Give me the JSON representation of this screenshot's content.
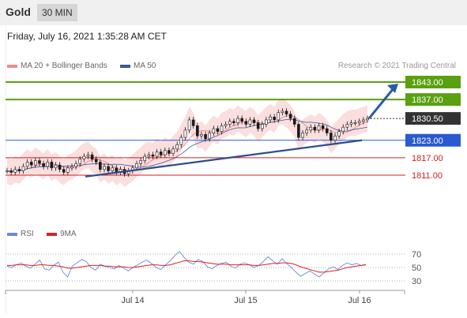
{
  "header": {
    "asset": "Gold",
    "timeframe": "30 MIN"
  },
  "datetime": "Friday, July 16, 2021 1:35:28 AM CET",
  "credit": "Research © 2021 Trading Central",
  "legend": [
    {
      "label": "MA 20 + Bollinger Bands",
      "color": "#f08a8a"
    },
    {
      "label": "MA 50",
      "color": "#3a5a9a"
    }
  ],
  "rsi_legend": [
    {
      "label": "RSI",
      "color": "#6a8ae0"
    },
    {
      "label": "9MA",
      "color": "#e02020"
    }
  ],
  "chart_data": {
    "type": "candlestick",
    "x_ticks": [
      "Jul 14",
      "Jul 15",
      "Jul 16"
    ],
    "current_price": {
      "value": 1830.5,
      "label": "1830.50"
    },
    "levels": [
      {
        "value": 1843.0,
        "label": "1843.00",
        "kind": "resistance",
        "color": "#5aa010"
      },
      {
        "value": 1837.0,
        "label": "1837.00",
        "kind": "resistance",
        "color": "#5aa010"
      },
      {
        "value": 1823.0,
        "label": "1823.00",
        "kind": "pivot",
        "color": "#2a5ad0"
      },
      {
        "value": 1817.0,
        "label": "1817.00",
        "kind": "support",
        "color": "#d02020"
      },
      {
        "value": 1811.0,
        "label": "1811.00",
        "kind": "support",
        "color": "#d02020"
      }
    ],
    "price_path": [
      1812.5,
      1812.0,
      1813.0,
      1812.5,
      1814.0,
      1815.5,
      1814.5,
      1816.0,
      1815.0,
      1814.0,
      1815.5,
      1813.5,
      1814.5,
      1813.0,
      1812.0,
      1813.5,
      1814.0,
      1815.0,
      1816.5,
      1817.5,
      1818.0,
      1816.5,
      1815.5,
      1813.0,
      1814.0,
      1812.5,
      1813.5,
      1812.0,
      1813.0,
      1811.5,
      1812.5,
      1813.5,
      1815.0,
      1816.0,
      1817.5,
      1818.0,
      1817.5,
      1819.0,
      1818.0,
      1819.5,
      1818.5,
      1820.0,
      1821.5,
      1824.0,
      1826.5,
      1830.0,
      1828.0,
      1824.5,
      1825.0,
      1823.5,
      1825.5,
      1827.0,
      1826.0,
      1828.0,
      1828.5,
      1829.5,
      1829.0,
      1830.5,
      1829.5,
      1828.5,
      1830.0,
      1829.0,
      1827.0,
      1828.5,
      1830.0,
      1831.0,
      1830.0,
      1832.5,
      1833.0,
      1832.0,
      1830.5,
      1828.5,
      1824.0,
      1825.5,
      1826.5,
      1827.5,
      1826.5,
      1828.0,
      1827.0,
      1825.5,
      1823.0,
      1824.5,
      1826.0,
      1827.5,
      1828.5,
      1829.0,
      1829.0,
      1829.5,
      1830.0,
      1830.5
    ],
    "trend_line": {
      "from": 1810.5,
      "to": 1823.0
    },
    "projection": {
      "from": 1830.5,
      "to": 1843.0
    },
    "rsi": {
      "levels": [
        70,
        50,
        30
      ],
      "rsi_path": [
        52,
        50,
        54,
        57,
        52,
        49,
        55,
        61,
        48,
        46,
        53,
        58,
        43,
        36,
        52,
        57,
        62,
        59,
        50,
        46,
        55,
        52,
        50,
        48,
        53,
        49,
        45,
        50,
        54,
        58,
        61,
        56,
        50,
        47,
        54,
        60,
        68,
        74,
        65,
        58,
        55,
        62,
        59,
        51,
        48,
        53,
        56,
        58,
        52,
        49,
        55,
        57,
        54,
        50,
        53,
        59,
        66,
        60,
        55,
        63,
        56,
        50,
        43,
        37,
        41,
        45,
        40,
        36,
        42,
        48,
        51,
        47,
        53,
        57,
        54,
        56,
        53,
        55
      ],
      "ma_path": [
        53,
        53,
        54,
        54,
        54,
        53,
        53,
        54,
        54,
        53,
        53,
        52,
        51,
        49,
        49,
        50,
        51,
        52,
        53,
        53,
        53,
        52,
        52,
        51,
        51,
        51,
        50,
        50,
        51,
        52,
        53,
        54,
        54,
        53,
        53,
        54,
        56,
        58,
        60,
        60,
        59,
        59,
        58,
        57,
        56,
        55,
        55,
        55,
        54,
        54,
        54,
        54,
        54,
        53,
        53,
        54,
        55,
        56,
        56,
        57,
        57,
        56,
        54,
        51,
        49,
        47,
        45,
        43,
        43,
        44,
        45,
        46,
        48,
        50,
        51,
        52,
        53,
        54
      ]
    }
  }
}
